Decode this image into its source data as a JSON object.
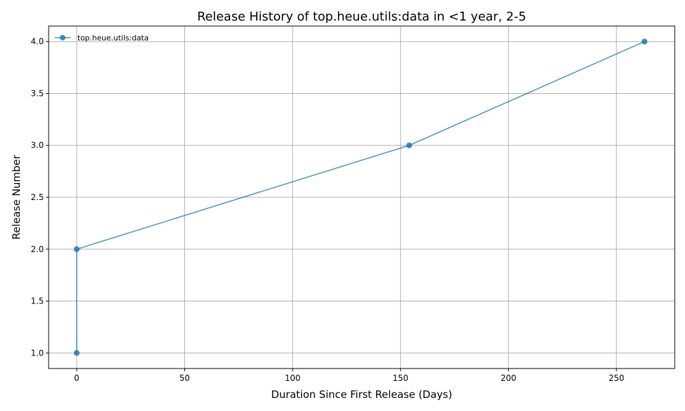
{
  "chart_data": {
    "type": "line",
    "title": "Release History of top.heue.utils:data in <1 year, 2-5",
    "xlabel": "Duration Since First Release (Days)",
    "ylabel": "Release Number",
    "xlim": [
      -13,
      277
    ],
    "ylim": [
      0.85,
      4.15
    ],
    "xticks": [
      0,
      50,
      100,
      150,
      200,
      250
    ],
    "yticks": [
      1.0,
      1.5,
      2.0,
      2.5,
      3.0,
      3.5,
      4.0
    ],
    "xtick_labels": [
      "0",
      "50",
      "100",
      "150",
      "200",
      "250"
    ],
    "ytick_labels": [
      "1.0",
      "1.5",
      "2.0",
      "2.5",
      "3.0",
      "3.5",
      "4.0"
    ],
    "grid": true,
    "legend_position": "top-left",
    "series": [
      {
        "name": "top.heue.utils:data",
        "color": "#1f77b4",
        "marker": "circle",
        "x": [
          0,
          0,
          154,
          263
        ],
        "y": [
          1,
          2,
          3,
          4
        ]
      }
    ]
  }
}
